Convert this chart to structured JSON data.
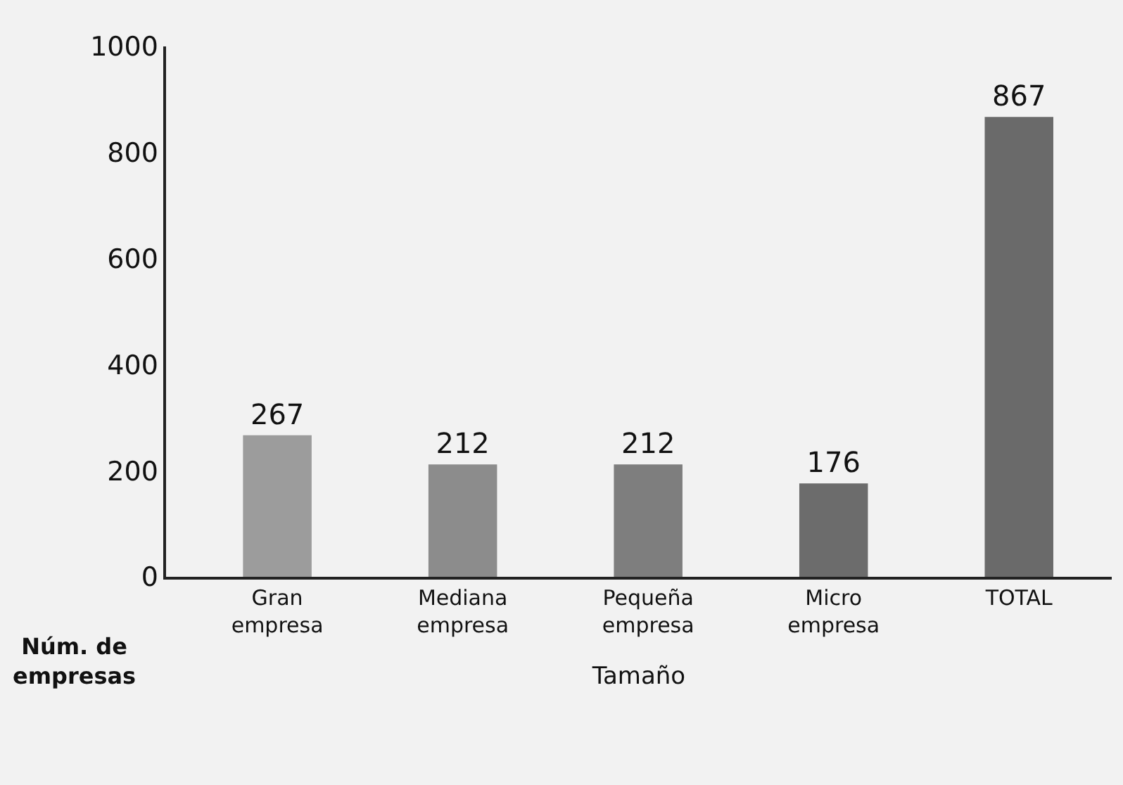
{
  "chart_data": {
    "type": "bar",
    "xlabel": "Tamaño",
    "ylabel": "Núm. de\nempresas",
    "categories": [
      "Gran\nempresa",
      "Mediana\nempresa",
      "Pequeña\nempresa",
      "Micro\nempresa",
      "TOTAL"
    ],
    "values": [
      267,
      212,
      212,
      176,
      867
    ],
    "colors": [
      "#9c9c9c",
      "#8c8c8c",
      "#7e7e7e",
      "#6c6c6c",
      "#6a6a6a"
    ],
    "ylim": [
      0,
      1000
    ],
    "yticks": [
      0,
      200,
      400,
      600,
      800,
      1000
    ],
    "grid": false,
    "data_labels": true
  }
}
